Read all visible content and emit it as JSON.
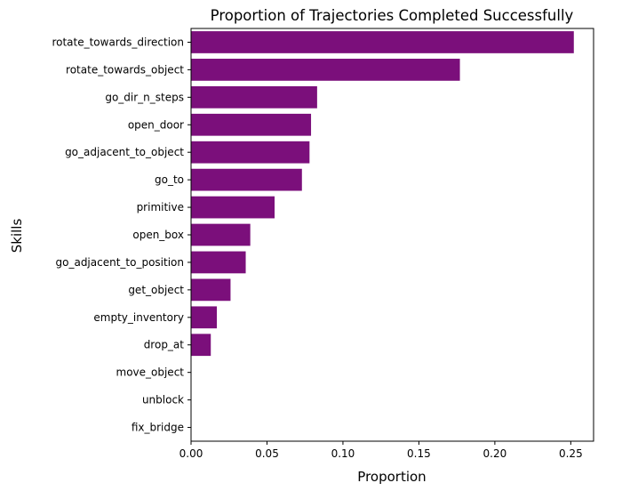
{
  "chart_data": {
    "type": "bar",
    "orientation": "horizontal",
    "title": "Proportion of Trajectories Completed Successfully",
    "xlabel": "Proportion",
    "ylabel": "Skills",
    "xlim": [
      0,
      0.265
    ],
    "xticks": [
      0.0,
      0.05,
      0.1,
      0.15,
      0.2,
      0.25
    ],
    "xtick_labels": [
      "0.00",
      "0.05",
      "0.10",
      "0.15",
      "0.20",
      "0.25"
    ],
    "grid": false,
    "bar_color": "#7b0f7b",
    "categories": [
      "rotate_towards_direction",
      "rotate_towards_object",
      "go_dir_n_steps",
      "open_door",
      "go_adjacent_to_object",
      "go_to",
      "primitive",
      "open_box",
      "go_adjacent_to_position",
      "get_object",
      "empty_inventory",
      "drop_at",
      "move_object",
      "unblock",
      "fix_bridge"
    ],
    "values": [
      0.252,
      0.177,
      0.083,
      0.079,
      0.078,
      0.073,
      0.055,
      0.039,
      0.036,
      0.026,
      0.017,
      0.013,
      0.0,
      0.0,
      0.0
    ]
  }
}
